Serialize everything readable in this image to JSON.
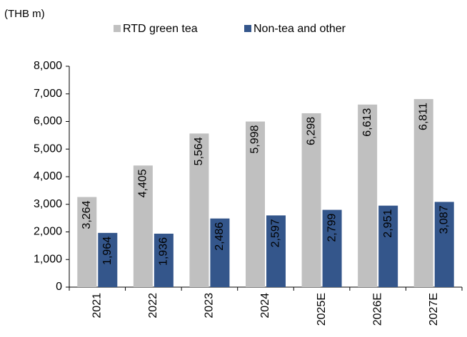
{
  "chart_data": {
    "type": "bar",
    "unit_label": "(THB m)",
    "categories": [
      "2021",
      "2022",
      "2023",
      "2024",
      "2025E",
      "2026E",
      "2027E"
    ],
    "series": [
      {
        "name": "RTD green tea",
        "color": "#c0c0c0",
        "label_color": "#000000",
        "values": [
          3264,
          4405,
          5564,
          5998,
          6298,
          6613,
          6811
        ],
        "value_labels": [
          "3,264",
          "4,405",
          "5,564",
          "5,998",
          "6,298",
          "6,613",
          "6,811"
        ]
      },
      {
        "name": "Non-tea and other",
        "color": "#34568b",
        "label_color": "#ffffff",
        "values": [
          1964,
          1936,
          2486,
          2597,
          2799,
          2951,
          3087
        ],
        "value_labels": [
          "1,964",
          "1,936",
          "2,486",
          "2,597",
          "2,799",
          "2,951",
          "3,087"
        ]
      }
    ],
    "ylim": [
      0,
      8000
    ],
    "yticks": [
      0,
      {
        "value": 1000,
        "label": "1,000"
      },
      {
        "value": 2000,
        "label": "2,000"
      },
      {
        "value": 3000,
        "label": "3,000"
      },
      {
        "value": 4000,
        "label": "4,000"
      },
      {
        "value": 5000,
        "label": "5,000"
      },
      {
        "value": 6000,
        "label": "6,000"
      },
      {
        "value": 7000,
        "label": "7,000"
      },
      {
        "value": 8000,
        "label": "8,000"
      }
    ],
    "grid": false
  }
}
